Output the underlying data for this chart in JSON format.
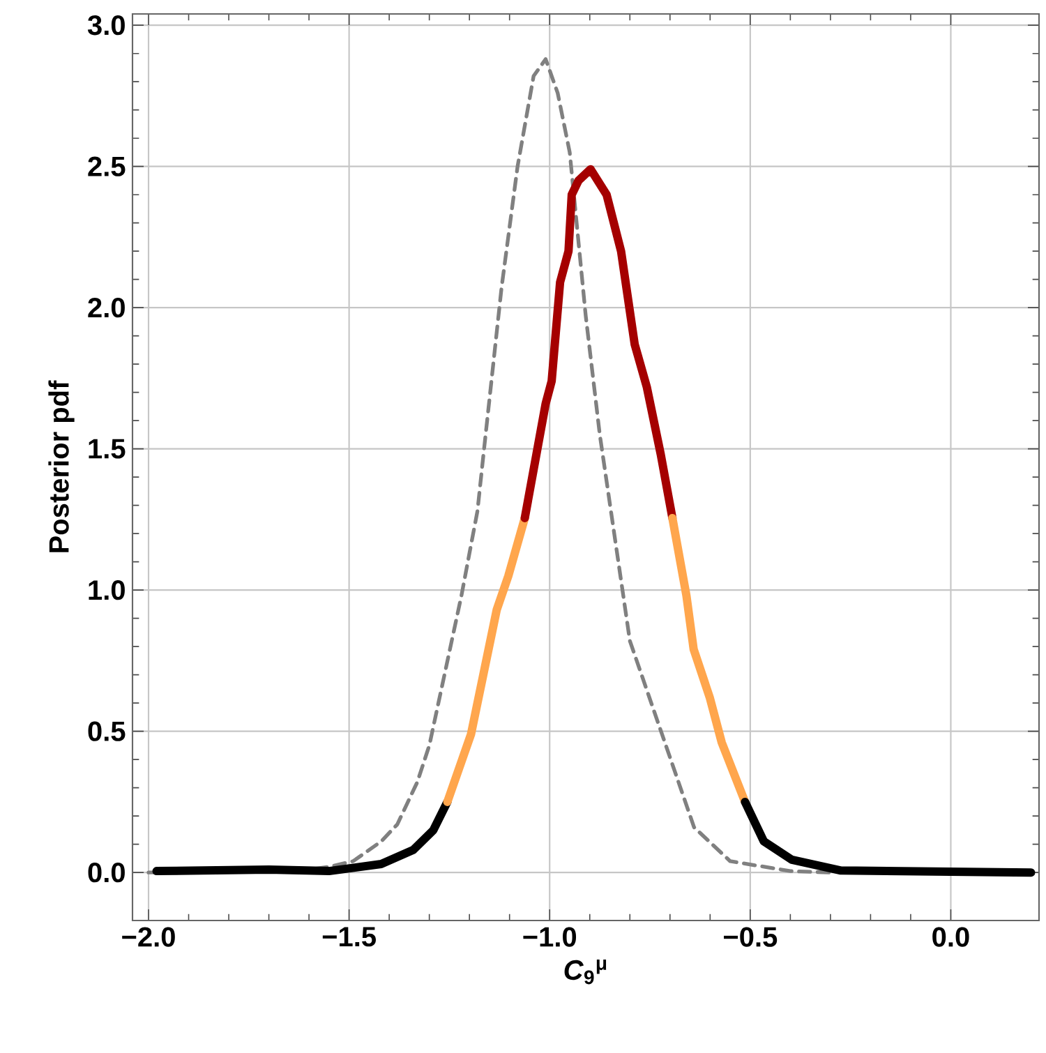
{
  "chart_data": {
    "type": "line",
    "xlabel": "*C*$_{9}$$^{μ}$",
    "ylabel": "Posterior pdf",
    "xlim": [
      -2.04,
      0.22
    ],
    "ylim": [
      -0.17,
      3.04
    ],
    "xticks": [
      {
        "value": -2.0,
        "label": "−2.0"
      },
      {
        "value": -1.5,
        "label": "−1.5"
      },
      {
        "value": -1.0,
        "label": "−1.0"
      },
      {
        "value": -0.5,
        "label": "−0.5"
      },
      {
        "value": 0.0,
        "label": "0.0"
      }
    ],
    "yticks": [
      {
        "value": 0.0,
        "label": "0.0"
      },
      {
        "value": 0.5,
        "label": "0.5"
      },
      {
        "value": 1.0,
        "label": "1.0"
      },
      {
        "value": 1.5,
        "label": "1.5"
      },
      {
        "value": 2.0,
        "label": "2.0"
      },
      {
        "value": 2.5,
        "label": "2.5"
      },
      {
        "value": 3.0,
        "label": "3.0"
      }
    ],
    "grid": true,
    "marker": "none",
    "series": [
      {
        "color": "#808080",
        "line_style": "dashed",
        "x": [
          -2.0,
          -1.6,
          -1.55,
          -1.49,
          -1.42,
          -1.38,
          -1.33,
          -1.3,
          -1.22,
          -1.18,
          -1.165,
          -1.12,
          -1.08,
          -1.04,
          -1.01,
          -0.98,
          -0.95,
          -0.91,
          -0.875,
          -0.8,
          -0.72,
          -0.64,
          -0.55,
          -0.4,
          -0.3
        ],
        "values": [
          0.0,
          0.01,
          0.02,
          0.04,
          0.11,
          0.17,
          0.32,
          0.45,
          0.98,
          1.28,
          1.48,
          2.07,
          2.5,
          2.82,
          2.88,
          2.76,
          2.55,
          1.97,
          1.55,
          0.82,
          0.49,
          0.16,
          0.04,
          0.005,
          0.0
        ]
      },
      {
        "color": "#000000",
        "line_style": "solid",
        "x": [
          -1.98,
          -1.7,
          -1.55,
          -1.42,
          -1.34,
          -1.29,
          -1.255
        ],
        "values": [
          0.005,
          0.01,
          0.005,
          0.03,
          0.08,
          0.15,
          0.25
        ]
      },
      {
        "color": "#ffa64d",
        "line_style": "solid",
        "x": [
          -1.255,
          -1.196,
          -1.132,
          -1.103,
          -1.062
        ],
        "values": [
          0.25,
          0.49,
          0.93,
          1.05,
          1.255
        ]
      },
      {
        "color": "#a50000",
        "line_style": "solid",
        "x": [
          -1.062,
          -1.01,
          -0.995,
          -0.974,
          -0.953,
          -0.945,
          -0.928,
          -0.898,
          -0.858,
          -0.822,
          -0.788,
          -0.758,
          -0.723,
          -0.694
        ],
        "values": [
          1.255,
          1.66,
          1.74,
          2.09,
          2.2,
          2.4,
          2.45,
          2.49,
          2.4,
          2.2,
          1.87,
          1.72,
          1.48,
          1.255
        ]
      },
      {
        "color": "#ffa64d",
        "line_style": "solid",
        "x": [
          -0.694,
          -0.659,
          -0.641,
          -0.601,
          -0.571,
          -0.513
        ],
        "values": [
          1.255,
          0.98,
          0.79,
          0.62,
          0.46,
          0.25
        ]
      },
      {
        "color": "#000000",
        "line_style": "solid",
        "x": [
          -0.513,
          -0.466,
          -0.396,
          -0.274,
          0.2
        ],
        "values": [
          0.25,
          0.11,
          0.045,
          0.007,
          0.0
        ]
      }
    ]
  }
}
